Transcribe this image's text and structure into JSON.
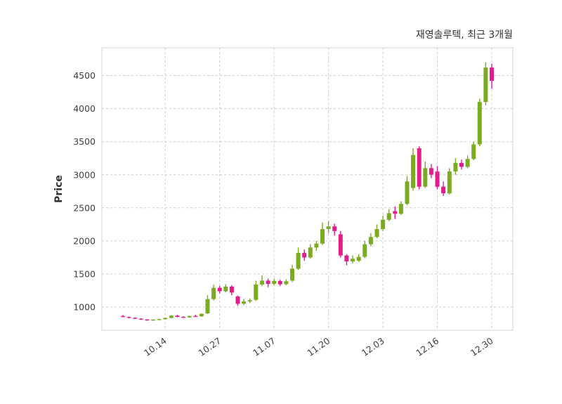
{
  "header": {
    "title": "재영솔루텍, 최근 3개월"
  },
  "chart_data": {
    "type": "candlestick",
    "title": "재영솔루텍, 최근 3개월",
    "ylabel": "Price",
    "xlabel": "",
    "grid": "dashed",
    "legend": "none",
    "y_ticks": [
      1000,
      1500,
      2000,
      2500,
      3000,
      3500,
      4000,
      4500
    ],
    "ylim": [
      650,
      4920
    ],
    "x_tick_labels": [
      "10.14",
      "10.27",
      "11.07",
      "11.20",
      "12.03",
      "12.16",
      "12.30"
    ],
    "x_tick_indices": [
      7,
      16,
      25,
      34,
      43,
      52,
      61
    ],
    "colors": {
      "up": "#7bab21",
      "down": "#df1e8a"
    },
    "candle_format": [
      "open",
      "high",
      "low",
      "close"
    ],
    "candles": [
      [
        865,
        880,
        845,
        850
      ],
      [
        850,
        858,
        830,
        838
      ],
      [
        838,
        845,
        820,
        825
      ],
      [
        825,
        832,
        806,
        812
      ],
      [
        812,
        818,
        792,
        800
      ],
      [
        800,
        815,
        793,
        810
      ],
      [
        810,
        822,
        800,
        818
      ],
      [
        818,
        842,
        810,
        836
      ],
      [
        836,
        880,
        828,
        870
      ],
      [
        870,
        885,
        845,
        852
      ],
      [
        852,
        862,
        838,
        845
      ],
      [
        845,
        872,
        840,
        865
      ],
      [
        865,
        885,
        852,
        860
      ],
      [
        860,
        905,
        855,
        898
      ],
      [
        905,
        1180,
        895,
        1120
      ],
      [
        1120,
        1340,
        1100,
        1290
      ],
      [
        1290,
        1320,
        1210,
        1240
      ],
      [
        1240,
        1345,
        1225,
        1310
      ],
      [
        1310,
        1330,
        1180,
        1220
      ],
      [
        1160,
        1175,
        1020,
        1050
      ],
      [
        1050,
        1120,
        1030,
        1085
      ],
      [
        1085,
        1130,
        1060,
        1105
      ],
      [
        1110,
        1400,
        1095,
        1340
      ],
      [
        1340,
        1480,
        1320,
        1400
      ],
      [
        1400,
        1430,
        1300,
        1350
      ],
      [
        1350,
        1430,
        1330,
        1395
      ],
      [
        1395,
        1415,
        1320,
        1345
      ],
      [
        1345,
        1420,
        1330,
        1390
      ],
      [
        1400,
        1640,
        1380,
        1580
      ],
      [
        1580,
        1900,
        1560,
        1820
      ],
      [
        1820,
        1870,
        1700,
        1750
      ],
      [
        1750,
        1950,
        1730,
        1900
      ],
      [
        1900,
        2000,
        1850,
        1960
      ],
      [
        1960,
        2280,
        1940,
        2180
      ],
      [
        2180,
        2300,
        2120,
        2220
      ],
      [
        2220,
        2260,
        2080,
        2150
      ],
      [
        2100,
        2150,
        1750,
        1780
      ],
      [
        1780,
        1800,
        1630,
        1690
      ],
      [
        1690,
        1780,
        1660,
        1730
      ],
      [
        1700,
        1800,
        1680,
        1760
      ],
      [
        1760,
        2000,
        1740,
        1950
      ],
      [
        1950,
        2120,
        1920,
        2060
      ],
      [
        2060,
        2250,
        2040,
        2180
      ],
      [
        2180,
        2380,
        2150,
        2320
      ],
      [
        2320,
        2480,
        2300,
        2420
      ],
      [
        2450,
        2520,
        2330,
        2410
      ],
      [
        2410,
        2600,
        2395,
        2560
      ],
      [
        2560,
        2980,
        2540,
        2900
      ],
      [
        2800,
        3400,
        2760,
        3300
      ],
      [
        3400,
        3430,
        2780,
        2820
      ],
      [
        2820,
        3200,
        2800,
        3100
      ],
      [
        3100,
        3160,
        2950,
        3000
      ],
      [
        3050,
        3130,
        2780,
        2820
      ],
      [
        2820,
        2900,
        2680,
        2720
      ],
      [
        2720,
        3100,
        2700,
        3050
      ],
      [
        3050,
        3250,
        3000,
        3180
      ],
      [
        3180,
        3230,
        3080,
        3120
      ],
      [
        3120,
        3290,
        3100,
        3240
      ],
      [
        3240,
        3500,
        3220,
        3460
      ],
      [
        3460,
        4150,
        3430,
        4100
      ],
      [
        4100,
        4700,
        4050,
        4620
      ],
      [
        4620,
        4680,
        4300,
        4420
      ]
    ]
  }
}
